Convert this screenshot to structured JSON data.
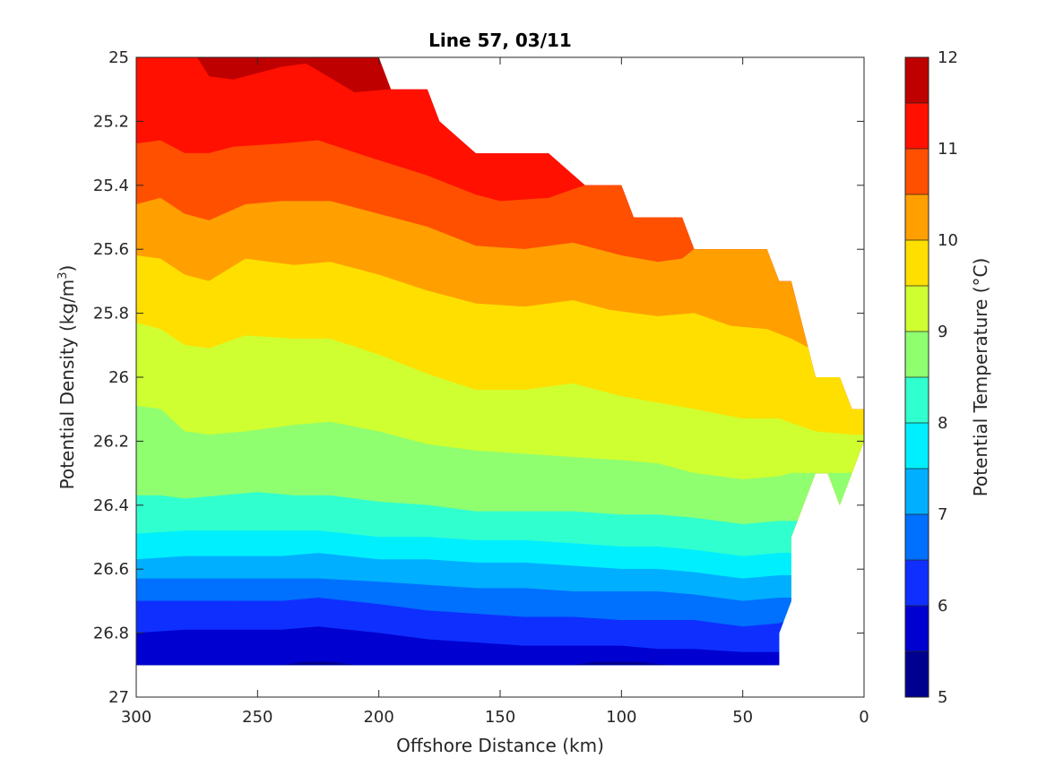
{
  "chart_data": {
    "type": "filled-contour",
    "title": "Line 57, 03/11",
    "xlabel": "Offshore Distance (km)",
    "ylabel_main": "Potential Density (kg/m",
    "ylabel_sup": "3",
    "ylabel_close": ")",
    "colorbar_label": "Potential Temperature (°C)",
    "x_range": [
      300,
      0
    ],
    "x_reversed": true,
    "y_range": [
      25,
      27
    ],
    "y_reversed": true,
    "x_ticks": [
      300,
      250,
      200,
      150,
      100,
      50,
      0
    ],
    "x_tick_labels": [
      "300",
      "250",
      "200",
      "150",
      "100",
      "50",
      "0"
    ],
    "y_ticks": [
      25,
      25.2,
      25.4,
      25.6,
      25.8,
      26,
      26.2,
      26.4,
      26.6,
      26.8,
      27
    ],
    "y_tick_labels": [
      "25",
      "25.2",
      "25.4",
      "25.6",
      "25.8",
      "26",
      "26.2",
      "26.4",
      "26.6",
      "26.8",
      "27"
    ],
    "colorbar_range": [
      5,
      12
    ],
    "colorbar_ticks": [
      5,
      6,
      7,
      8,
      9,
      10,
      11,
      12
    ],
    "colorbar_tick_labels": [
      "5",
      "6",
      "7",
      "8",
      "9",
      "10",
      "11",
      "12"
    ],
    "levels": [
      5,
      5.5,
      6,
      6.5,
      7,
      7.5,
      8,
      8.5,
      9,
      9.5,
      10,
      10.5,
      11,
      11.5,
      12
    ],
    "colormap": "jet",
    "level_colors": [
      "#00008F",
      "#0000D0",
      "#0F2FFF",
      "#0070FF",
      "#00AFFF",
      "#00EFFF",
      "#30FFCF",
      "#8FFF70",
      "#CFFF30",
      "#FFDF00",
      "#FFA000",
      "#FF5000",
      "#FF1000",
      "#BF0000"
    ],
    "data_coverage": {
      "top_boundary": [
        [
          300,
          25.0
        ],
        [
          200,
          25.0
        ],
        [
          195,
          25.1
        ],
        [
          180,
          25.1
        ],
        [
          175,
          25.2
        ],
        [
          160,
          25.3
        ],
        [
          130,
          25.3
        ],
        [
          115,
          25.4
        ],
        [
          100,
          25.4
        ],
        [
          95,
          25.5
        ],
        [
          75,
          25.5
        ],
        [
          70,
          25.6
        ],
        [
          40,
          25.6
        ],
        [
          35,
          25.7
        ],
        [
          30,
          25.7
        ],
        [
          20,
          26.0
        ],
        [
          10,
          26.0
        ],
        [
          5,
          26.1
        ],
        [
          0,
          26.1
        ]
      ],
      "bottom_boundary": [
        [
          300,
          26.9
        ],
        [
          35,
          26.9
        ],
        [
          35,
          26.8
        ],
        [
          30,
          26.7
        ],
        [
          30,
          26.5
        ],
        [
          20,
          26.3
        ],
        [
          15,
          26.3
        ],
        [
          10,
          26.4
        ],
        [
          5,
          26.3
        ],
        [
          0,
          26.2
        ]
      ]
    },
    "isotherms": [
      {
        "level": 11.5,
        "points": [
          [
            300,
            25.0
          ],
          [
            275,
            25.0
          ],
          [
            270,
            25.06
          ],
          [
            260,
            25.07
          ],
          [
            240,
            25.03
          ],
          [
            230,
            25.02
          ],
          [
            210,
            25.11
          ],
          [
            195,
            25.1
          ]
        ]
      },
      {
        "level": 11.0,
        "points": [
          [
            300,
            25.27
          ],
          [
            290,
            25.26
          ],
          [
            280,
            25.3
          ],
          [
            270,
            25.3
          ],
          [
            260,
            25.28
          ],
          [
            240,
            25.27
          ],
          [
            225,
            25.26
          ],
          [
            205,
            25.31
          ],
          [
            180,
            25.37
          ],
          [
            160,
            25.43
          ],
          [
            150,
            25.45
          ],
          [
            130,
            25.44
          ],
          [
            115,
            25.4
          ]
        ]
      },
      {
        "level": 10.5,
        "points": [
          [
            300,
            25.46
          ],
          [
            290,
            25.44
          ],
          [
            280,
            25.49
          ],
          [
            270,
            25.51
          ],
          [
            255,
            25.46
          ],
          [
            240,
            25.45
          ],
          [
            220,
            25.45
          ],
          [
            200,
            25.49
          ],
          [
            180,
            25.53
          ],
          [
            160,
            25.59
          ],
          [
            140,
            25.6
          ],
          [
            120,
            25.58
          ],
          [
            100,
            25.62
          ],
          [
            85,
            25.64
          ],
          [
            75,
            25.63
          ],
          [
            70,
            25.6
          ]
        ]
      },
      {
        "level": 10.0,
        "points": [
          [
            300,
            25.62
          ],
          [
            290,
            25.63
          ],
          [
            280,
            25.68
          ],
          [
            270,
            25.7
          ],
          [
            255,
            25.63
          ],
          [
            235,
            25.65
          ],
          [
            220,
            25.64
          ],
          [
            200,
            25.68
          ],
          [
            180,
            25.73
          ],
          [
            160,
            25.77
          ],
          [
            140,
            25.78
          ],
          [
            120,
            25.76
          ],
          [
            105,
            25.79
          ],
          [
            85,
            25.81
          ],
          [
            70,
            25.8
          ],
          [
            55,
            25.84
          ],
          [
            40,
            25.85
          ],
          [
            30,
            25.88
          ],
          [
            20,
            25.92
          ]
        ]
      },
      {
        "level": 9.5,
        "points": [
          [
            300,
            25.83
          ],
          [
            290,
            25.85
          ],
          [
            280,
            25.9
          ],
          [
            270,
            25.91
          ],
          [
            255,
            25.87
          ],
          [
            235,
            25.88
          ],
          [
            220,
            25.88
          ],
          [
            200,
            25.93
          ],
          [
            180,
            25.99
          ],
          [
            160,
            26.04
          ],
          [
            140,
            26.04
          ],
          [
            120,
            26.02
          ],
          [
            100,
            26.06
          ],
          [
            85,
            26.08
          ],
          [
            70,
            26.1
          ],
          [
            50,
            26.13
          ],
          [
            35,
            26.13
          ],
          [
            20,
            26.17
          ],
          [
            5,
            26.18
          ],
          [
            0,
            26.18
          ]
        ]
      },
      {
        "level": 9.0,
        "points": [
          [
            300,
            26.09
          ],
          [
            290,
            26.1
          ],
          [
            280,
            26.17
          ],
          [
            270,
            26.18
          ],
          [
            255,
            26.17
          ],
          [
            235,
            26.15
          ],
          [
            220,
            26.14
          ],
          [
            200,
            26.17
          ],
          [
            180,
            26.21
          ],
          [
            160,
            26.23
          ],
          [
            140,
            26.24
          ],
          [
            120,
            26.25
          ],
          [
            100,
            26.26
          ],
          [
            85,
            26.27
          ],
          [
            70,
            26.3
          ],
          [
            50,
            26.32
          ],
          [
            35,
            26.31
          ],
          [
            30,
            26.3
          ],
          [
            20,
            26.3
          ]
        ]
      },
      {
        "level": 8.5,
        "points": [
          [
            300,
            26.37
          ],
          [
            290,
            26.37
          ],
          [
            280,
            26.38
          ],
          [
            265,
            26.37
          ],
          [
            250,
            26.36
          ],
          [
            235,
            26.37
          ],
          [
            220,
            26.37
          ],
          [
            200,
            26.39
          ],
          [
            180,
            26.4
          ],
          [
            160,
            26.42
          ],
          [
            140,
            26.42
          ],
          [
            120,
            26.42
          ],
          [
            100,
            26.43
          ],
          [
            85,
            26.43
          ],
          [
            70,
            26.44
          ],
          [
            50,
            26.46
          ],
          [
            35,
            26.45
          ],
          [
            30,
            26.45
          ]
        ]
      },
      {
        "level": 8.0,
        "points": [
          [
            300,
            26.49
          ],
          [
            280,
            26.48
          ],
          [
            260,
            26.48
          ],
          [
            240,
            26.48
          ],
          [
            225,
            26.48
          ],
          [
            200,
            26.5
          ],
          [
            180,
            26.5
          ],
          [
            160,
            26.51
          ],
          [
            140,
            26.51
          ],
          [
            120,
            26.52
          ],
          [
            100,
            26.53
          ],
          [
            85,
            26.53
          ],
          [
            70,
            26.54
          ],
          [
            50,
            26.56
          ],
          [
            35,
            26.55
          ],
          [
            30,
            26.55
          ]
        ]
      },
      {
        "level": 7.5,
        "points": [
          [
            300,
            26.57
          ],
          [
            280,
            26.56
          ],
          [
            260,
            26.56
          ],
          [
            240,
            26.56
          ],
          [
            225,
            26.55
          ],
          [
            200,
            26.57
          ],
          [
            180,
            26.57
          ],
          [
            160,
            26.58
          ],
          [
            140,
            26.58
          ],
          [
            120,
            26.59
          ],
          [
            100,
            26.6
          ],
          [
            85,
            26.6
          ],
          [
            70,
            26.61
          ],
          [
            50,
            26.63
          ],
          [
            35,
            26.62
          ],
          [
            30,
            26.62
          ]
        ]
      },
      {
        "level": 7.0,
        "points": [
          [
            300,
            26.63
          ],
          [
            280,
            26.63
          ],
          [
            260,
            26.63
          ],
          [
            240,
            26.63
          ],
          [
            225,
            26.63
          ],
          [
            200,
            26.64
          ],
          [
            180,
            26.65
          ],
          [
            160,
            26.66
          ],
          [
            140,
            26.66
          ],
          [
            120,
            26.67
          ],
          [
            100,
            26.67
          ],
          [
            85,
            26.67
          ],
          [
            70,
            26.68
          ],
          [
            50,
            26.7
          ],
          [
            35,
            26.69
          ],
          [
            30,
            26.69
          ]
        ]
      },
      {
        "level": 6.5,
        "points": [
          [
            300,
            26.7
          ],
          [
            280,
            26.7
          ],
          [
            260,
            26.7
          ],
          [
            240,
            26.7
          ],
          [
            225,
            26.69
          ],
          [
            200,
            26.71
          ],
          [
            180,
            26.73
          ],
          [
            160,
            26.74
          ],
          [
            140,
            26.75
          ],
          [
            120,
            26.75
          ],
          [
            100,
            26.76
          ],
          [
            85,
            26.76
          ],
          [
            70,
            26.76
          ],
          [
            50,
            26.78
          ],
          [
            35,
            26.77
          ],
          [
            31,
            26.76
          ]
        ]
      },
      {
        "level": 6.0,
        "points": [
          [
            300,
            26.8
          ],
          [
            280,
            26.79
          ],
          [
            260,
            26.79
          ],
          [
            240,
            26.79
          ],
          [
            225,
            26.78
          ],
          [
            200,
            26.8
          ],
          [
            180,
            26.82
          ],
          [
            160,
            26.83
          ],
          [
            140,
            26.84
          ],
          [
            120,
            26.84
          ],
          [
            100,
            26.84
          ],
          [
            85,
            26.85
          ],
          [
            70,
            26.85
          ],
          [
            50,
            26.86
          ],
          [
            35,
            26.86
          ]
        ]
      },
      {
        "level": 5.5,
        "points": [
          [
            240,
            26.9
          ],
          [
            230,
            26.89
          ],
          [
            220,
            26.89
          ],
          [
            210,
            26.9
          ],
          [
            120,
            26.9
          ],
          [
            110,
            26.89
          ],
          [
            95,
            26.89
          ],
          [
            80,
            26.9
          ]
        ]
      }
    ]
  }
}
